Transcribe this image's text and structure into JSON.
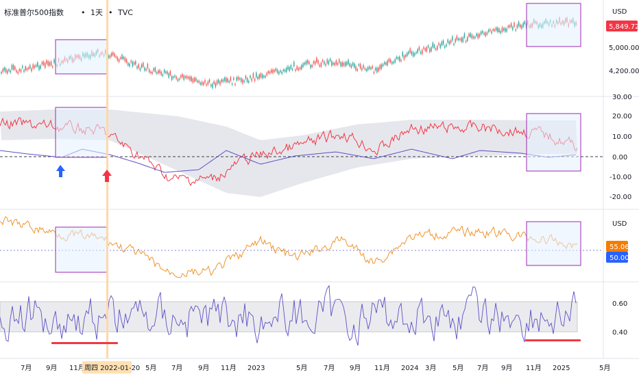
{
  "header": {
    "title": "标准普尔500指数",
    "interval": "1天",
    "source": "TVC",
    "separator": "•"
  },
  "price_pane": {
    "currency": "USD",
    "last_price": "5,849.72",
    "last_price_color": "#f23645",
    "axis_labels": [
      "5,000.00",
      "4,200.00"
    ]
  },
  "oscillator_pane": {
    "axis_labels": [
      "30.00",
      "20.00",
      "10.00",
      "0.00",
      "-10.00",
      "-20.00"
    ],
    "line_colors": {
      "momentum": "#f23645",
      "signal": "#5b4fc4"
    },
    "arrows": [
      {
        "name": "buy-arrow",
        "direction": "up",
        "color": "#2962ff"
      },
      {
        "name": "sell-arrow",
        "direction": "up",
        "color": "#f23645"
      }
    ]
  },
  "ratio_pane": {
    "currency": "USD",
    "value_tag": "55.06",
    "value_tag_color": "#f57c00",
    "level_tag": "50.00",
    "level_tag_color": "#2962ff"
  },
  "rsi_pane": {
    "axis_labels": [
      "0.60",
      "0.40"
    ]
  },
  "time_axis": {
    "labels": [
      "7月",
      "9月",
      "11月",
      "5月",
      "7月",
      "9月",
      "11月",
      "2023",
      "5月",
      "7月",
      "9月",
      "11月",
      "2024",
      "3月",
      "5月",
      "7月",
      "9月",
      "11月",
      "2025",
      "5月"
    ],
    "crosshair_label": "周四 2022-01-20"
  },
  "colors": {
    "highlight_border": "#9c27b0",
    "highlight_fill": "#e3f0ff",
    "crosshair": "#ffb74d",
    "band": "#e6e7ec",
    "ratio_line": "#f0932b",
    "rsi_line": "#5b4fc4",
    "up_candle": "#26a69a",
    "down_candle": "#ef5350"
  }
}
